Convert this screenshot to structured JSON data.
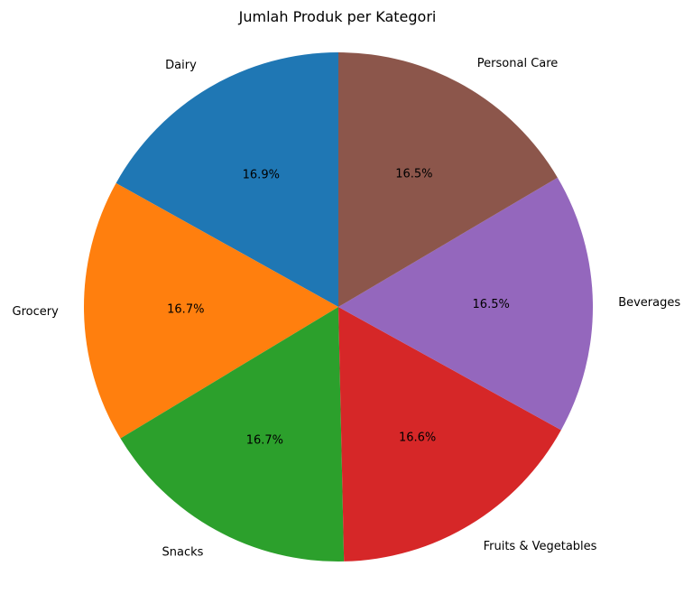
{
  "chart_data": {
    "type": "pie",
    "title": "Jumlah Produk per Kategori",
    "start_angle_deg": 90,
    "direction": "counterclockwise",
    "slices": [
      {
        "label": "Dairy",
        "value": 16.9,
        "pct_label": "16.9%",
        "color": "#1f77b4"
      },
      {
        "label": "Grocery",
        "value": 16.7,
        "pct_label": "16.7%",
        "color": "#ff7f0e"
      },
      {
        "label": "Snacks",
        "value": 16.7,
        "pct_label": "16.7%",
        "color": "#2ca02c"
      },
      {
        "label": "Fruits & Vegetables",
        "value": 16.6,
        "pct_label": "16.6%",
        "color": "#d62728"
      },
      {
        "label": "Beverages",
        "value": 16.5,
        "pct_label": "16.5%",
        "color": "#9467bd"
      },
      {
        "label": "Personal Care",
        "value": 16.5,
        "pct_label": "16.5%",
        "color": "#8c564b"
      }
    ]
  }
}
